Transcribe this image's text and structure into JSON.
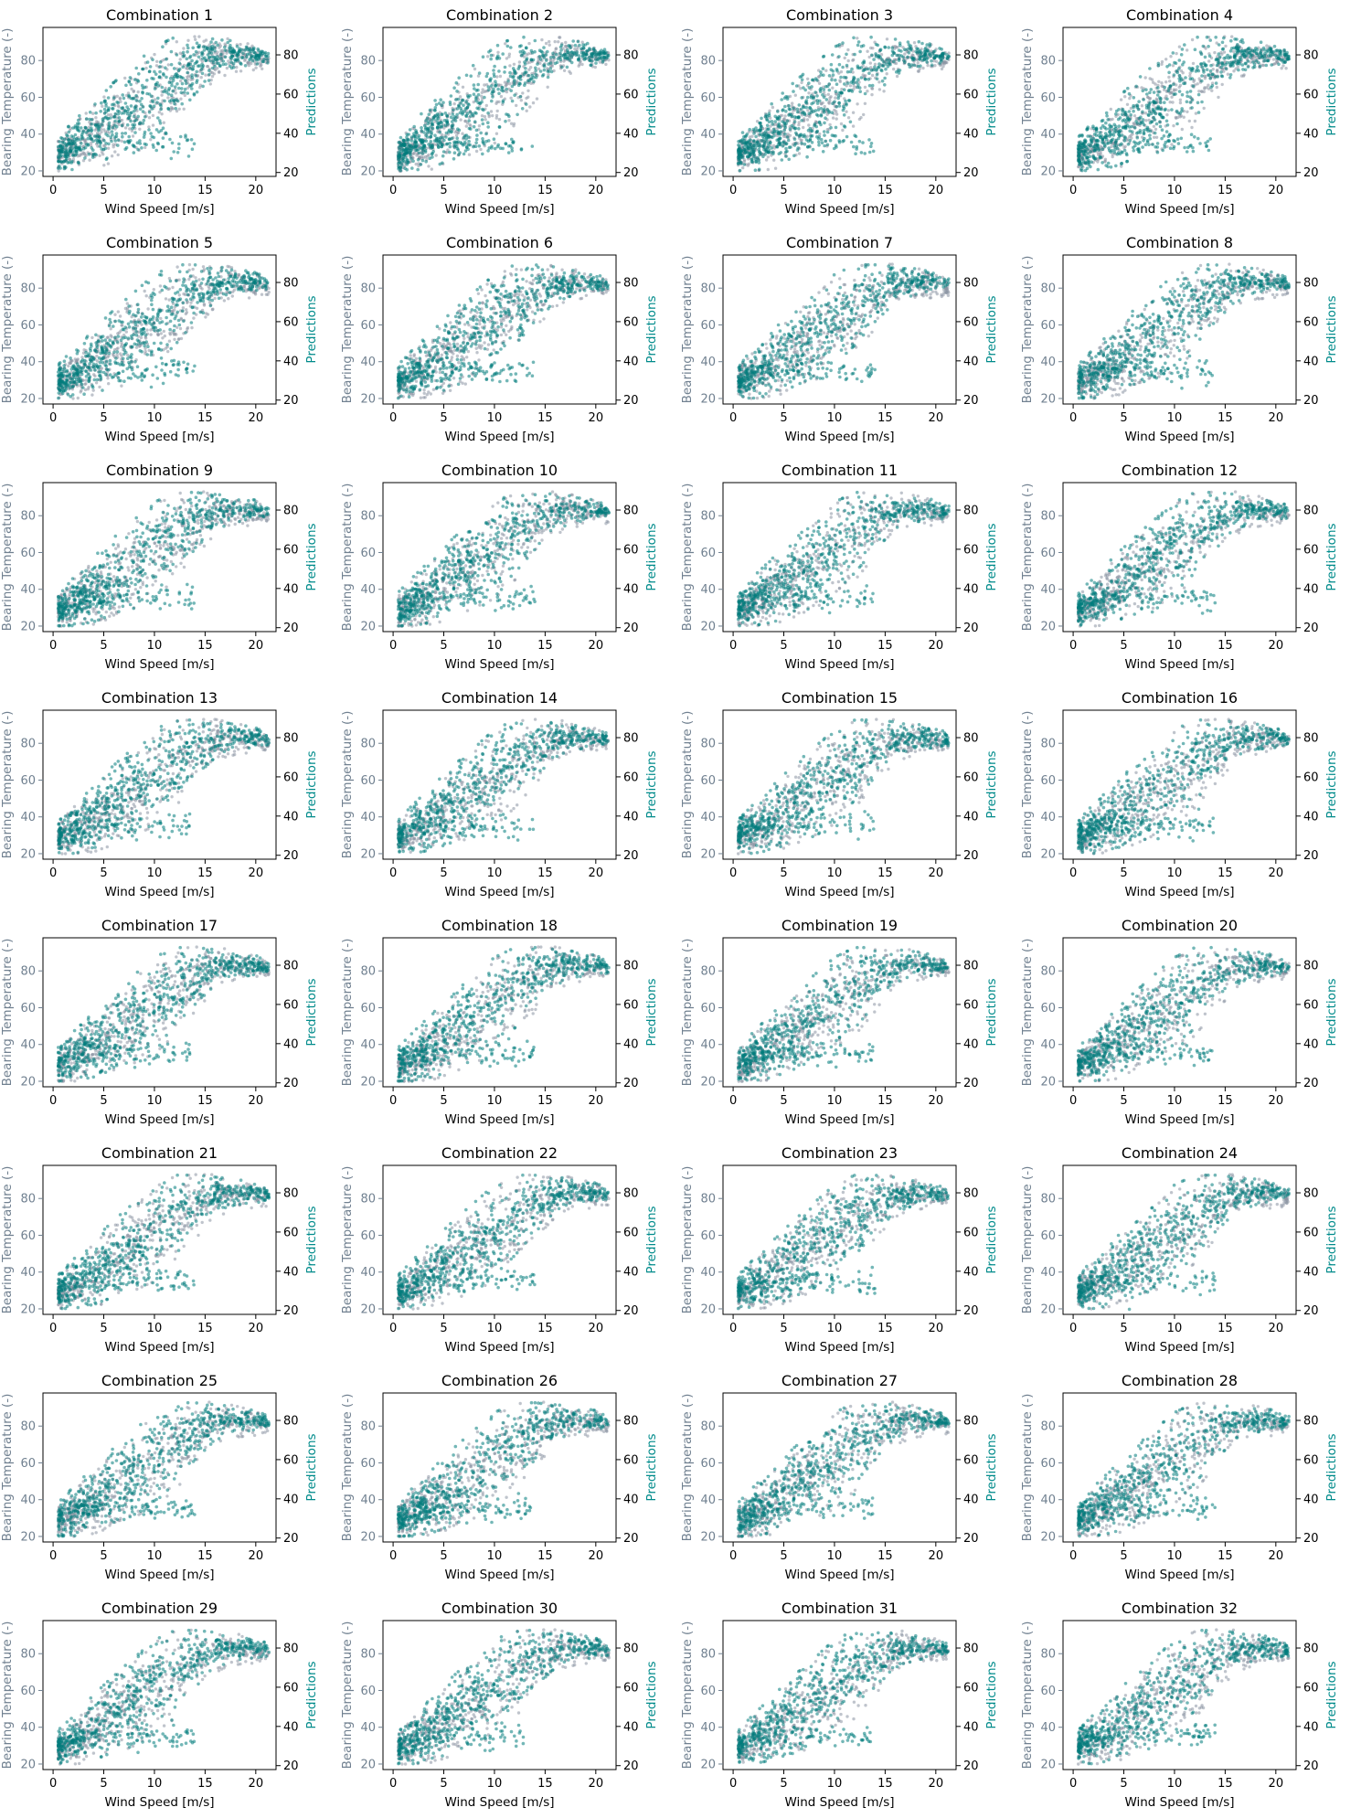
{
  "figure": {
    "colors": {
      "actual": "#8a93a3",
      "prediction": "#007b7b",
      "left_axis_text": "#708090",
      "right_axis_text": "#008b8b",
      "axis": "#000000"
    }
  },
  "chart_data": {
    "type": "scatter",
    "panel_count": 32,
    "layout": {
      "rows": 8,
      "cols": 4
    },
    "titles": [
      "Combination 1",
      "Combination 2",
      "Combination 3",
      "Combination 4",
      "Combination 5",
      "Combination 6",
      "Combination 7",
      "Combination 8",
      "Combination 9",
      "Combination 10",
      "Combination 11",
      "Combination 12",
      "Combination 13",
      "Combination 14",
      "Combination 15",
      "Combination 16",
      "Combination 17",
      "Combination 18",
      "Combination 19",
      "Combination 20",
      "Combination 21",
      "Combination 22",
      "Combination 23",
      "Combination 24",
      "Combination 25",
      "Combination 26",
      "Combination 27",
      "Combination 28",
      "Combination 29",
      "Combination 30",
      "Combination 31",
      "Combination 32"
    ],
    "xlabel": "Wind Speed [m/s]",
    "ylabel": "Bearing Temperature (-)",
    "ylabel_right": "Predictions",
    "xlim": [
      -1,
      22
    ],
    "ylim": [
      17,
      98
    ],
    "ylim_right": [
      18,
      94
    ],
    "xticks": [
      0,
      5,
      10,
      15,
      20
    ],
    "yticks": [
      20,
      40,
      60,
      80
    ],
    "yticks_right": [
      20,
      40,
      60,
      80
    ],
    "grid": false,
    "series": [
      {
        "axis": "left",
        "shape": [
          {
            "x": 0.5,
            "y_low": 20,
            "y_high": 36
          },
          {
            "x": 2,
            "y_low": 20,
            "y_high": 45
          },
          {
            "x": 4,
            "y_low": 21,
            "y_high": 55
          },
          {
            "x": 6,
            "y_low": 25,
            "y_high": 65
          },
          {
            "x": 8,
            "y_low": 30,
            "y_high": 75
          },
          {
            "x": 10,
            "y_low": 35,
            "y_high": 86
          },
          {
            "x": 12,
            "y_low": 45,
            "y_high": 92
          },
          {
            "x": 14,
            "y_low": 58,
            "y_high": 93
          },
          {
            "x": 16,
            "y_low": 70,
            "y_high": 93
          },
          {
            "x": 18,
            "y_low": 74,
            "y_high": 91
          },
          {
            "x": 20,
            "y_low": 75,
            "y_high": 88
          },
          {
            "x": 21.3,
            "y_low": 76,
            "y_high": 84
          }
        ]
      },
      {
        "axis": "right",
        "shape": [
          {
            "x": 0.5,
            "y_low": 21,
            "y_high": 38
          },
          {
            "x": 2,
            "y_low": 21,
            "y_high": 46
          },
          {
            "x": 4,
            "y_low": 23,
            "y_high": 56
          },
          {
            "x": 6,
            "y_low": 27,
            "y_high": 66
          },
          {
            "x": 8,
            "y_low": 32,
            "y_high": 75
          },
          {
            "x": 10,
            "y_low": 38,
            "y_high": 84
          },
          {
            "x": 12,
            "y_low": 48,
            "y_high": 89
          },
          {
            "x": 14,
            "y_low": 60,
            "y_high": 89
          },
          {
            "x": 16,
            "y_low": 70,
            "y_high": 88
          },
          {
            "x": 18,
            "y_low": 74,
            "y_high": 87
          },
          {
            "x": 20,
            "y_low": 75,
            "y_high": 85
          },
          {
            "x": 21.3,
            "y_low": 76,
            "y_high": 82
          }
        ],
        "branch": {
          "x_start": 2,
          "x_end": 14,
          "y_center": 35,
          "y_spread": 3
        }
      }
    ]
  }
}
